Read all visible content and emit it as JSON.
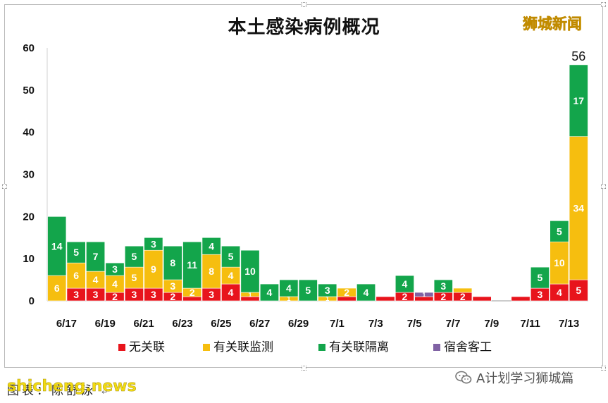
{
  "header": {
    "brand_logo": "狮城新闻"
  },
  "chart_data": {
    "type": "bar",
    "stacked": true,
    "title": "本土感染病例概况",
    "ylim": [
      0,
      60
    ],
    "yticks": [
      0,
      10,
      20,
      30,
      40,
      50,
      60
    ],
    "grid": false,
    "legend_position": "bottom",
    "x_tick_labels": [
      "6/17",
      "6/19",
      "6/21",
      "6/23",
      "6/25",
      "6/27",
      "6/29",
      "7/1",
      "7/3",
      "7/5",
      "7/7",
      "7/9",
      "7/11",
      "7/13"
    ],
    "categories": [
      "6/17",
      "6/18",
      "6/19",
      "6/20",
      "6/21",
      "6/22",
      "6/23",
      "6/24",
      "6/25",
      "6/26",
      "6/27",
      "6/28",
      "6/29",
      "6/30",
      "7/1",
      "7/2",
      "7/3",
      "7/4",
      "7/5",
      "7/6",
      "7/7",
      "7/8",
      "7/9",
      "7/10",
      "7/11",
      "7/12",
      "7/13",
      "7/14"
    ],
    "series": [
      {
        "name": "无关联",
        "color": "#e8141c",
        "values": [
          0,
          3,
          3,
          2,
          3,
          3,
          2,
          1,
          3,
          4,
          1,
          0,
          0,
          0,
          0,
          1,
          0,
          1,
          2,
          1,
          2,
          2,
          1,
          0,
          1,
          3,
          4,
          5
        ],
        "labels": [
          null,
          "3",
          "3",
          "2",
          "3",
          "3",
          "2",
          null,
          "3",
          "4",
          null,
          null,
          null,
          null,
          null,
          null,
          null,
          null,
          "2",
          null,
          "2",
          "2",
          null,
          null,
          null,
          "3",
          "4",
          "5"
        ]
      },
      {
        "name": "有关联监测",
        "color": "#f6be0f",
        "values": [
          6,
          6,
          4,
          4,
          5,
          9,
          3,
          2,
          8,
          4,
          1,
          0,
          1,
          0,
          1,
          2,
          0,
          0,
          0,
          0,
          0,
          1,
          0,
          0,
          0,
          0,
          10,
          34
        ],
        "labels": [
          "6",
          "6",
          "4",
          "4",
          "5",
          "9",
          "3",
          "2",
          "8",
          "4",
          "1",
          null,
          "1",
          null,
          "1",
          "2",
          null,
          null,
          null,
          null,
          null,
          null,
          null,
          null,
          null,
          null,
          "10",
          "34"
        ]
      },
      {
        "name": "有关联隔离",
        "color": "#13a54b",
        "values": [
          14,
          5,
          7,
          3,
          5,
          3,
          8,
          11,
          4,
          5,
          10,
          4,
          4,
          5,
          3,
          0,
          4,
          0,
          4,
          0,
          3,
          0,
          0,
          0,
          0,
          5,
          5,
          17
        ],
        "labels": [
          "14",
          "5",
          "7",
          "3",
          "5",
          "3",
          "8",
          "11",
          "4",
          "5",
          "10",
          "4",
          "4",
          "5",
          "3",
          null,
          "4",
          null,
          "4",
          null,
          "3",
          null,
          null,
          null,
          null,
          "5",
          "5",
          "17"
        ]
      },
      {
        "name": "宿舍客工",
        "color": "#8062a4",
        "values": [
          0,
          0,
          0,
          0,
          0,
          0,
          0,
          0,
          0,
          0,
          0,
          0,
          0,
          0,
          0,
          0,
          0,
          0,
          0,
          1,
          0,
          0,
          0,
          0,
          0,
          0,
          0,
          0
        ],
        "labels": [
          null,
          null,
          null,
          null,
          null,
          null,
          null,
          null,
          null,
          null,
          null,
          null,
          null,
          null,
          null,
          null,
          null,
          null,
          null,
          "1",
          null,
          null,
          null,
          null,
          null,
          null,
          null,
          null
        ]
      }
    ],
    "total_annotation": {
      "category": "7/14",
      "value": "56"
    }
  },
  "watermark": {
    "account": "A计划学习狮城篇"
  },
  "footer": {
    "caption": "图表：陈舒泳",
    "site": "shicheng.news"
  }
}
